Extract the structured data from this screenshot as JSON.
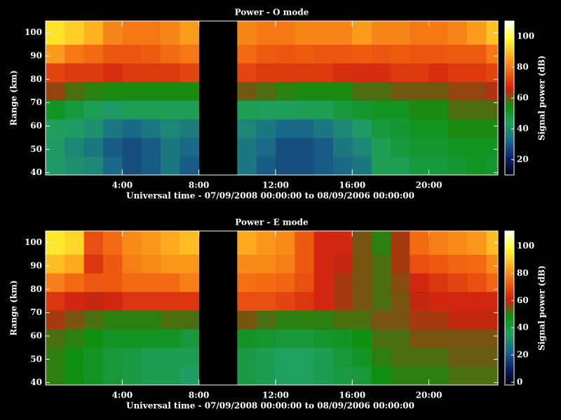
{
  "chart_data": [
    {
      "type": "heatmap",
      "title": "Power - O mode",
      "x_label": "Universal time - 07/09/2008 00:00:00 to 08/09/2006 00:00:00",
      "y_label": "Range (km)",
      "colorbar_label": "Signal power (dB)",
      "x_bins": [
        0,
        1,
        2,
        3,
        4,
        5,
        6,
        7,
        8,
        9,
        10,
        11,
        12,
        13,
        14,
        15,
        16,
        17,
        18,
        19,
        20,
        21,
        22,
        23,
        23.6
      ],
      "y_bins": [
        39,
        47,
        55,
        63,
        71,
        79,
        87,
        95,
        105
      ],
      "z": [
        [
          42,
          40,
          38,
          32,
          28,
          30,
          35,
          30,
          null,
          null,
          35,
          30,
          28,
          28,
          30,
          32,
          35,
          45,
          45,
          48,
          48,
          50,
          52,
          50
        ],
        [
          42,
          38,
          35,
          30,
          28,
          30,
          35,
          32,
          null,
          null,
          35,
          32,
          28,
          28,
          30,
          35,
          38,
          45,
          48,
          50,
          50,
          52,
          52,
          52
        ],
        [
          44,
          42,
          40,
          35,
          32,
          35,
          38,
          36,
          null,
          null,
          38,
          35,
          32,
          32,
          35,
          38,
          42,
          48,
          50,
          52,
          52,
          55,
          55,
          55
        ],
        [
          52,
          48,
          45,
          42,
          45,
          45,
          45,
          45,
          null,
          null,
          45,
          44,
          44,
          45,
          45,
          48,
          50,
          52,
          52,
          55,
          55,
          58,
          58,
          58
        ],
        [
          62,
          58,
          56,
          55,
          55,
          55,
          55,
          55,
          null,
          null,
          60,
          58,
          56,
          55,
          55,
          55,
          58,
          58,
          60,
          60,
          60,
          62,
          62,
          64
        ],
        [
          72,
          70,
          70,
          68,
          70,
          70,
          70,
          72,
          null,
          null,
          72,
          70,
          70,
          70,
          70,
          68,
          68,
          68,
          70,
          70,
          68,
          70,
          70,
          72
        ],
        [
          85,
          80,
          78,
          75,
          75,
          76,
          78,
          80,
          null,
          null,
          78,
          76,
          75,
          76,
          75,
          75,
          76,
          75,
          76,
          75,
          75,
          76,
          76,
          80
        ],
        [
          95,
          92,
          88,
          82,
          80,
          80,
          82,
          85,
          null,
          null,
          82,
          80,
          80,
          82,
          82,
          82,
          85,
          82,
          82,
          80,
          80,
          82,
          85,
          90
        ]
      ],
      "xlim": [
        0,
        23.6
      ],
      "xticks": [
        {
          "value": 4,
          "label": "4:00"
        },
        {
          "value": 8,
          "label": "8:00"
        },
        {
          "value": 12,
          "label": "12:00"
        },
        {
          "value": 16,
          "label": "16:00"
        },
        {
          "value": 20,
          "label": "20:00"
        }
      ],
      "ylim": [
        39,
        105
      ],
      "yticks": [
        40,
        50,
        60,
        70,
        80,
        90,
        100
      ],
      "clim": [
        10,
        110
      ],
      "cticks": [
        20,
        40,
        60,
        80,
        100
      ],
      "colormap": [
        "#000010",
        "#10206a",
        "#1a6a8a",
        "#20a060",
        "#109010",
        "#d02010",
        "#f06010",
        "#ffb020",
        "#ffff30",
        "#ffffff"
      ]
    },
    {
      "type": "heatmap",
      "title": "Power - E mode",
      "x_label": "Universal time - 07/09/2008 00:00:00 to 08/09/2006 00:00:00",
      "y_label": "Range (km)",
      "colorbar_label": "Signal power (dB)",
      "x_bins": [
        0,
        1,
        2,
        3,
        4,
        5,
        6,
        7,
        8,
        9,
        10,
        11,
        12,
        13,
        14,
        15,
        16,
        17,
        18,
        19,
        20,
        21,
        22,
        23,
        23.6
      ],
      "y_bins": [
        39,
        47,
        55,
        63,
        71,
        79,
        87,
        95,
        105
      ],
      "z": [
        [
          50,
          48,
          45,
          42,
          40,
          38,
          38,
          35,
          null,
          null,
          40,
          38,
          36,
          36,
          38,
          40,
          42,
          48,
          50,
          50,
          50,
          52,
          52,
          52
        ],
        [
          50,
          48,
          45,
          42,
          40,
          38,
          38,
          38,
          null,
          null,
          40,
          38,
          36,
          36,
          38,
          42,
          45,
          50,
          52,
          52,
          52,
          54,
          54,
          54
        ],
        [
          52,
          50,
          48,
          45,
          45,
          45,
          45,
          42,
          null,
          null,
          45,
          44,
          42,
          42,
          44,
          45,
          48,
          52,
          52,
          55,
          55,
          55,
          55,
          55
        ],
        [
          58,
          55,
          52,
          50,
          50,
          50,
          52,
          52,
          null,
          null,
          55,
          52,
          50,
          50,
          50,
          52,
          52,
          55,
          55,
          58,
          58,
          60,
          60,
          60
        ],
        [
          65,
          62,
          60,
          62,
          65,
          65,
          65,
          65,
          null,
          null,
          70,
          70,
          68,
          65,
          62,
          58,
          55,
          52,
          55,
          60,
          62,
          62,
          62,
          62
        ],
        [
          78,
          75,
          72,
          72,
          75,
          75,
          75,
          78,
          null,
          null,
          76,
          75,
          74,
          70,
          62,
          58,
          55,
          52,
          56,
          62,
          65,
          68,
          70,
          74
        ],
        [
          88,
          85,
          65,
          72,
          78,
          80,
          82,
          82,
          null,
          null,
          80,
          80,
          78,
          72,
          62,
          60,
          55,
          52,
          58,
          70,
          72,
          74,
          75,
          80
        ],
        [
          95,
          92,
          70,
          75,
          80,
          82,
          85,
          88,
          null,
          null,
          85,
          82,
          80,
          72,
          62,
          62,
          55,
          50,
          58,
          75,
          78,
          80,
          82,
          88
        ]
      ],
      "xlim": [
        0,
        23.6
      ],
      "xticks": [
        {
          "value": 4,
          "label": "4:00"
        },
        {
          "value": 8,
          "label": "8:00"
        },
        {
          "value": 12,
          "label": "12:00"
        },
        {
          "value": 16,
          "label": "16:00"
        },
        {
          "value": 20,
          "label": "20:00"
        }
      ],
      "ylim": [
        39,
        105
      ],
      "yticks": [
        40,
        50,
        60,
        70,
        80,
        90,
        100
      ],
      "clim": [
        -2,
        111
      ],
      "cticks": [
        0,
        20,
        40,
        60,
        80,
        100
      ],
      "colormap": [
        "#000010",
        "#10206a",
        "#1a6a8a",
        "#20a060",
        "#109010",
        "#d02010",
        "#f06010",
        "#ffb020",
        "#ffff30",
        "#ffffff"
      ]
    }
  ]
}
